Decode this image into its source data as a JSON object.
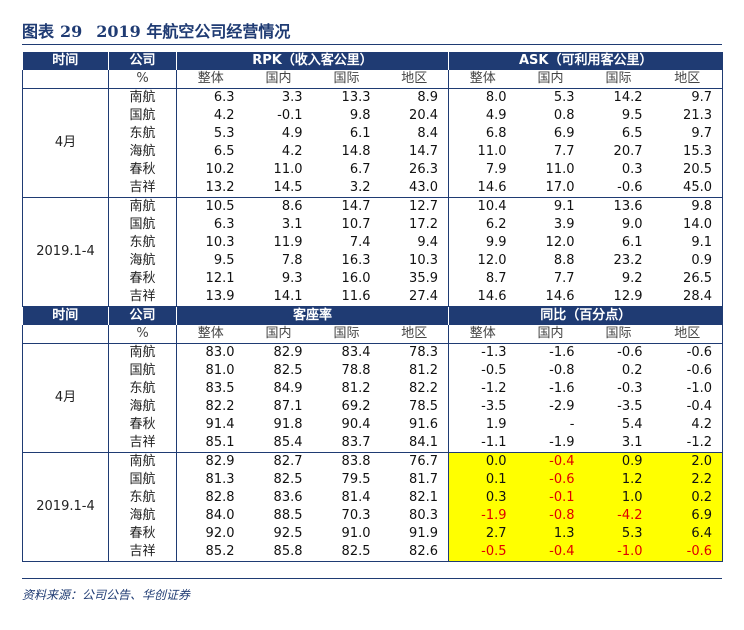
{
  "title": {
    "prefix": "图表",
    "number": "29",
    "text": "2019 年航空公司经营情况"
  },
  "colors": {
    "header_bg": "#1f3b73",
    "highlight": "#ffff00",
    "negative": "#e00000"
  },
  "top": {
    "h_time": "时间",
    "h_company": "公司",
    "h_rpk": "RPK（收入客公里）",
    "h_ask": "ASK（可利用客公里）",
    "unit": "%",
    "subs": [
      "整体",
      "国内",
      "国际",
      "地区",
      "整体",
      "国内",
      "国际",
      "地区"
    ],
    "groups": [
      {
        "label": "4月",
        "rows": [
          {
            "co": "南航",
            "v": [
              "6.3",
              "3.3",
              "13.3",
              "8.9",
              "8.0",
              "5.3",
              "14.2",
              "9.7"
            ]
          },
          {
            "co": "国航",
            "v": [
              "4.2",
              "-0.1",
              "9.8",
              "20.4",
              "4.9",
              "0.8",
              "9.5",
              "21.3"
            ]
          },
          {
            "co": "东航",
            "v": [
              "5.3",
              "4.9",
              "6.1",
              "8.4",
              "6.8",
              "6.9",
              "6.5",
              "9.7"
            ]
          },
          {
            "co": "海航",
            "v": [
              "6.5",
              "4.2",
              "14.8",
              "14.7",
              "11.0",
              "7.7",
              "20.7",
              "15.3"
            ]
          },
          {
            "co": "春秋",
            "v": [
              "10.2",
              "11.0",
              "6.7",
              "26.3",
              "7.9",
              "11.0",
              "0.3",
              "20.5"
            ]
          },
          {
            "co": "吉祥",
            "v": [
              "13.2",
              "14.5",
              "3.2",
              "43.0",
              "14.6",
              "17.0",
              "-0.6",
              "45.0"
            ]
          }
        ]
      },
      {
        "label": "2019.1-4",
        "rows": [
          {
            "co": "南航",
            "v": [
              "10.5",
              "8.6",
              "14.7",
              "12.7",
              "10.4",
              "9.1",
              "13.6",
              "9.8"
            ]
          },
          {
            "co": "国航",
            "v": [
              "6.3",
              "3.1",
              "10.7",
              "17.2",
              "6.2",
              "3.9",
              "9.0",
              "14.0"
            ]
          },
          {
            "co": "东航",
            "v": [
              "10.3",
              "11.9",
              "7.4",
              "9.4",
              "9.9",
              "12.0",
              "6.1",
              "9.1"
            ]
          },
          {
            "co": "海航",
            "v": [
              "9.5",
              "7.8",
              "16.3",
              "10.3",
              "12.0",
              "8.8",
              "23.2",
              "0.9"
            ]
          },
          {
            "co": "春秋",
            "v": [
              "12.1",
              "9.3",
              "16.0",
              "35.9",
              "8.7",
              "7.7",
              "9.2",
              "26.5"
            ]
          },
          {
            "co": "吉祥",
            "v": [
              "13.9",
              "14.1",
              "11.6",
              "27.4",
              "14.6",
              "14.6",
              "12.9",
              "28.4"
            ]
          }
        ]
      }
    ]
  },
  "bottom": {
    "h_time": "时间",
    "h_company": "公司",
    "h_lf": "客座率",
    "h_yoy": "同比（百分点）",
    "unit": "%",
    "subs": [
      "整体",
      "国内",
      "国际",
      "地区",
      "整体",
      "国内",
      "国际",
      "地区"
    ],
    "groups": [
      {
        "label": "4月",
        "highlight": false,
        "rows": [
          {
            "co": "南航",
            "v": [
              "83.0",
              "82.9",
              "83.4",
              "78.3",
              "-1.3",
              "-1.6",
              "-0.6",
              "-0.6"
            ]
          },
          {
            "co": "国航",
            "v": [
              "81.0",
              "82.5",
              "78.8",
              "81.2",
              "-0.5",
              "-0.8",
              "0.2",
              "-0.6"
            ]
          },
          {
            "co": "东航",
            "v": [
              "83.5",
              "84.9",
              "81.2",
              "82.2",
              "-1.2",
              "-1.6",
              "-0.3",
              "-1.0"
            ]
          },
          {
            "co": "海航",
            "v": [
              "82.2",
              "87.1",
              "69.2",
              "78.5",
              "-3.5",
              "-2.9",
              "-3.5",
              "-0.4"
            ]
          },
          {
            "co": "春秋",
            "v": [
              "91.4",
              "91.8",
              "90.4",
              "91.6",
              "1.9",
              "-",
              "5.4",
              "4.2"
            ]
          },
          {
            "co": "吉祥",
            "v": [
              "85.1",
              "85.4",
              "83.7",
              "84.1",
              "-1.1",
              "-1.9",
              "3.1",
              "-1.2"
            ]
          }
        ]
      },
      {
        "label": "2019.1-4",
        "highlight": true,
        "rows": [
          {
            "co": "南航",
            "v": [
              "82.9",
              "82.7",
              "83.8",
              "76.7",
              "0.0",
              "-0.4",
              "0.9",
              "2.0"
            ]
          },
          {
            "co": "国航",
            "v": [
              "81.3",
              "82.5",
              "79.5",
              "81.7",
              "0.1",
              "-0.6",
              "1.2",
              "2.2"
            ]
          },
          {
            "co": "东航",
            "v": [
              "82.8",
              "83.6",
              "81.4",
              "82.1",
              "0.3",
              "-0.1",
              "1.0",
              "0.2"
            ]
          },
          {
            "co": "海航",
            "v": [
              "84.0",
              "88.5",
              "70.3",
              "80.3",
              "-1.9",
              "-0.8",
              "-4.2",
              "6.9"
            ]
          },
          {
            "co": "春秋",
            "v": [
              "92.0",
              "92.5",
              "91.0",
              "91.9",
              "2.7",
              "1.3",
              "5.3",
              "6.4"
            ]
          },
          {
            "co": "吉祥",
            "v": [
              "85.2",
              "85.8",
              "82.5",
              "82.6",
              "-0.5",
              "-0.4",
              "-1.0",
              "-0.6"
            ]
          }
        ]
      }
    ]
  },
  "source": "资料来源：公司公告、华创证券"
}
